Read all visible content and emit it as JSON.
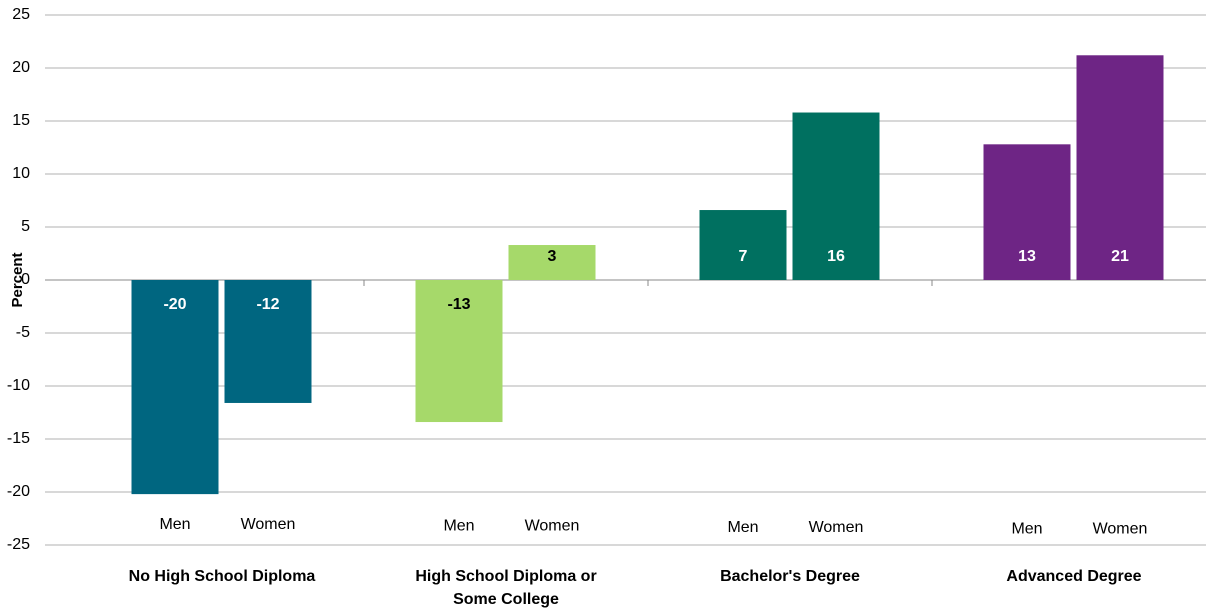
{
  "chart_data": {
    "type": "bar",
    "ylabel": "Percent",
    "ylim": [
      -25,
      25
    ],
    "yticks": [
      -25,
      -20,
      -15,
      -10,
      -5,
      0,
      5,
      10,
      15,
      20,
      25
    ],
    "grid": true,
    "groups": [
      {
        "name_lines": [
          "No High School Diploma"
        ],
        "color": "#006680",
        "subcategories": [
          "Men",
          "Women"
        ],
        "values": [
          -20.2,
          -11.6
        ],
        "value_labels": [
          "-20",
          "-12"
        ]
      },
      {
        "name_lines": [
          "High School Diploma or",
          "Some College"
        ],
        "color": "#a6d96a",
        "subcategories": [
          "Men",
          "Women"
        ],
        "values": [
          -13.4,
          3.3
        ],
        "value_labels": [
          "-13",
          "3"
        ]
      },
      {
        "name_lines": [
          "Bachelor's Degree"
        ],
        "color": "#007060",
        "subcategories": [
          "Men",
          "Women"
        ],
        "values": [
          6.6,
          15.8
        ],
        "value_labels": [
          "7",
          "16"
        ]
      },
      {
        "name_lines": [
          "Advanced Degree"
        ],
        "color": "#6e2585",
        "subcategories": [
          "Men",
          "Women"
        ],
        "values": [
          12.8,
          21.2
        ],
        "value_labels": [
          "13",
          "21"
        ]
      }
    ]
  }
}
